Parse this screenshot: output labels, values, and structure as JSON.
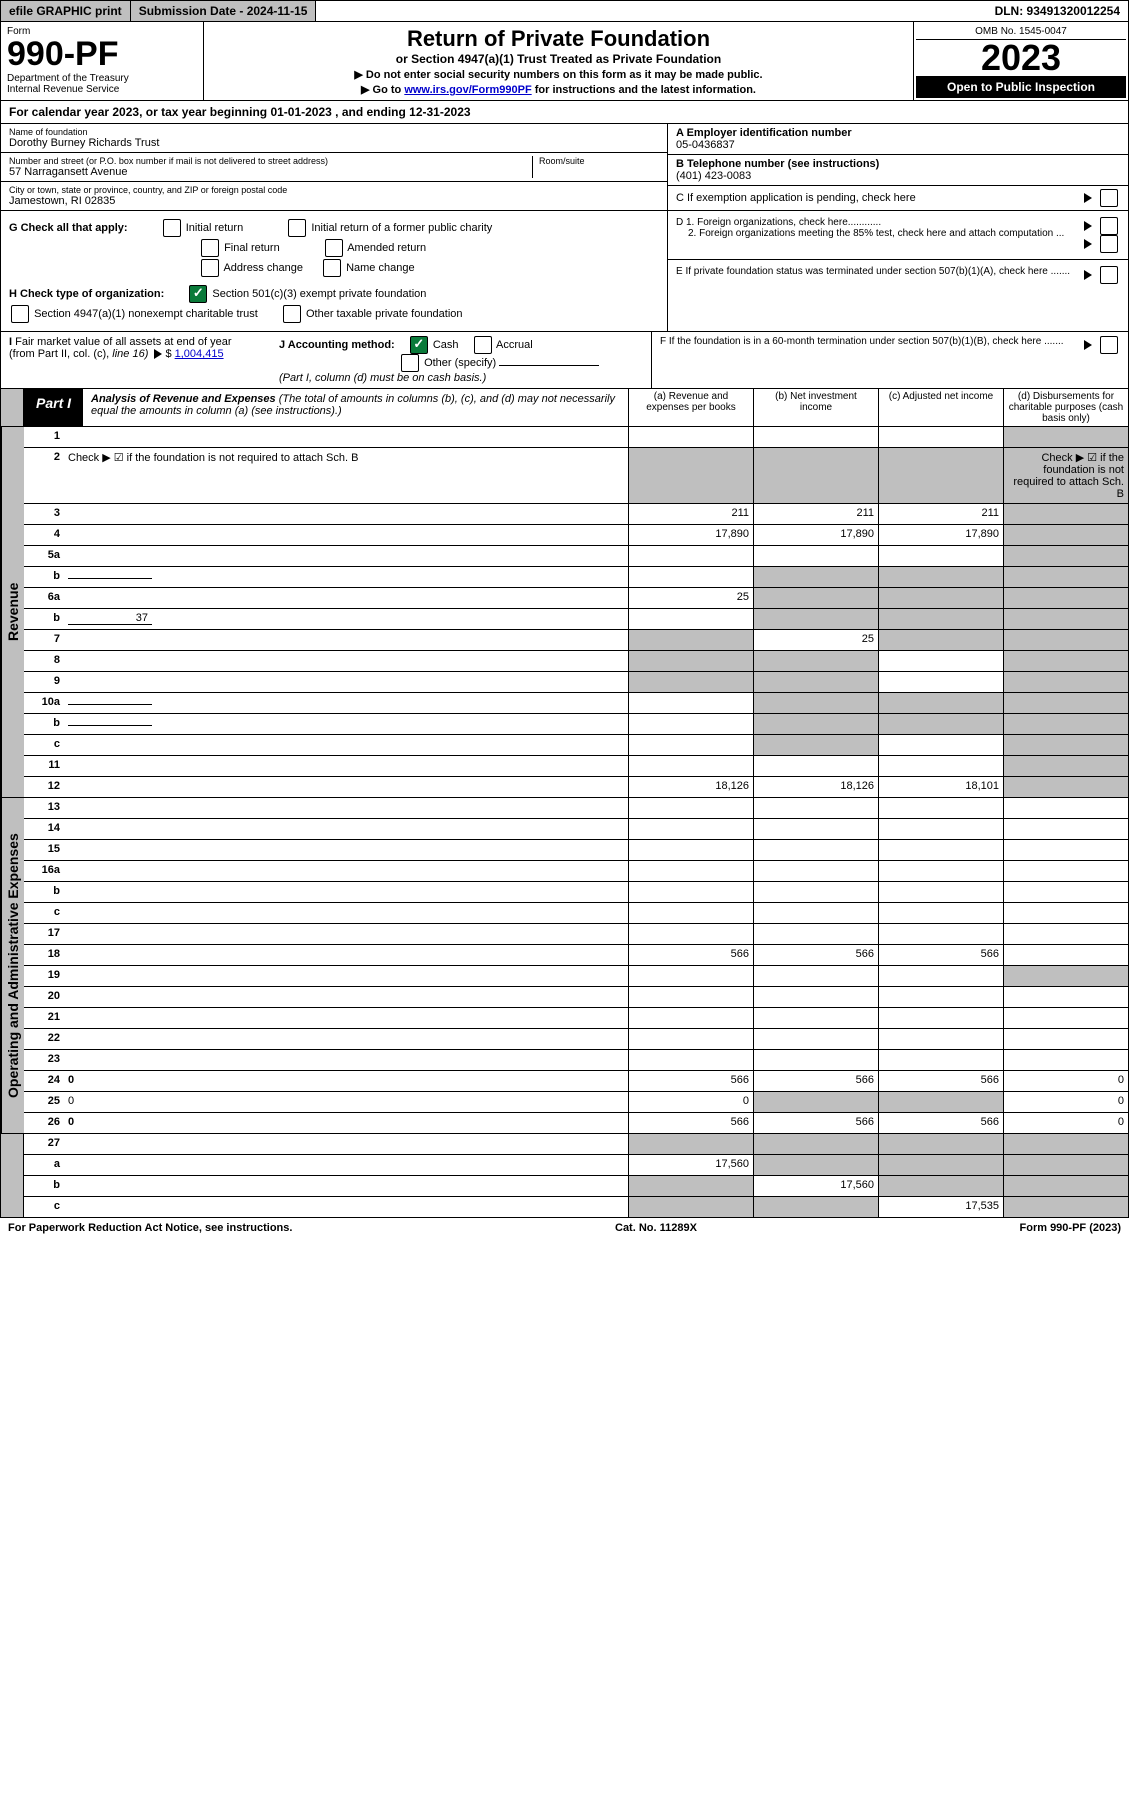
{
  "topbar": {
    "print": "efile GRAPHIC print",
    "submission": "Submission Date - 2024-11-15",
    "dln": "DLN: 93491320012254"
  },
  "header": {
    "form_label": "Form",
    "form_no": "990-PF",
    "dept": "Department of the Treasury\nInternal Revenue Service",
    "title": "Return of Private Foundation",
    "subtitle": "or Section 4947(a)(1) Trust Treated as Private Foundation",
    "instr1": "▶ Do not enter social security numbers on this form as it may be made public.",
    "instr2_prefix": "▶ Go to ",
    "instr2_link": "www.irs.gov/Form990PF",
    "instr2_suffix": " for instructions and the latest information.",
    "omb": "OMB No. 1545-0047",
    "year": "2023",
    "open": "Open to Public Inspection"
  },
  "cal_year": "For calendar year 2023, or tax year beginning 01-01-2023                               , and ending 12-31-2023",
  "info": {
    "name_label": "Name of foundation",
    "name": "Dorothy Burney Richards Trust",
    "addr_label": "Number and street (or P.O. box number if mail is not delivered to street address)",
    "addr": "57 Narragansett Avenue",
    "room_label": "Room/suite",
    "city_label": "City or town, state or province, country, and ZIP or foreign postal code",
    "city": "Jamestown, RI  02835",
    "ein_label": "A Employer identification number",
    "ein": "05-0436837",
    "phone_label": "B Telephone number (see instructions)",
    "phone": "(401) 423-0083",
    "c_label": "C If exemption application is pending, check here"
  },
  "g": {
    "label": "G Check all that apply:",
    "opts": [
      "Initial return",
      "Final return",
      "Address change",
      "Initial return of a former public charity",
      "Amended return",
      "Name change"
    ]
  },
  "h": {
    "label": "H Check type of organization:",
    "opt1": "Section 501(c)(3) exempt private foundation",
    "opt2": "Section 4947(a)(1) nonexempt charitable trust",
    "opt3": "Other taxable private foundation"
  },
  "i": {
    "label": "I Fair market value of all assets at end of year (from Part II, col. (c), line 16) ▶ $",
    "value": "1,004,415"
  },
  "j": {
    "label": "J Accounting method:",
    "cash": "Cash",
    "accrual": "Accrual",
    "other": "Other (specify)",
    "note": "(Part I, column (d) must be on cash basis.)"
  },
  "d": {
    "d1": "D 1. Foreign organizations, check here............",
    "d2": "2. Foreign organizations meeting the 85% test, check here and attach computation ..."
  },
  "e": "E  If private foundation status was terminated under section 507(b)(1)(A), check here .......",
  "f": "F  If the foundation is in a 60-month termination under section 507(b)(1)(B), check here .......",
  "part1": {
    "tag": "Part I",
    "title": "Analysis of Revenue and Expenses",
    "note": " (The total of amounts in columns (b), (c), and (d) may not necessarily equal the amounts in column (a) (see instructions).)",
    "cols": [
      "(a)  Revenue and expenses per books",
      "(b)  Net investment income",
      "(c)  Adjusted net income",
      "(d)  Disbursements for charitable purposes (cash basis only)"
    ]
  },
  "side_labels": {
    "revenue": "Revenue",
    "expenses": "Operating and Administrative Expenses"
  },
  "lines": [
    {
      "n": "1",
      "d": "",
      "a": "",
      "b": "",
      "c": "",
      "greyD": true
    },
    {
      "n": "2",
      "d": "Check ▶ ☑ if the foundation is not required to attach Sch. B",
      "noData": true,
      "greyAll": true
    },
    {
      "n": "3",
      "d": "",
      "a": "211",
      "b": "211",
      "c": "211",
      "greyD": true
    },
    {
      "n": "4",
      "d": "",
      "a": "17,890",
      "b": "17,890",
      "c": "17,890",
      "greyD": true
    },
    {
      "n": "5a",
      "d": "",
      "a": "",
      "b": "",
      "c": "",
      "greyD": true
    },
    {
      "n": "b",
      "d": "",
      "a": "",
      "b": "",
      "c": "",
      "greyBCD": true,
      "inline": true
    },
    {
      "n": "6a",
      "d": "",
      "a": "25",
      "b": "",
      "c": "",
      "greyBCD": true
    },
    {
      "n": "b",
      "d": "",
      "a": "",
      "b": "",
      "c": "",
      "greyBCD": true,
      "inline": true,
      "inlineVal": "37"
    },
    {
      "n": "7",
      "d": "",
      "a": "",
      "b": "25",
      "c": "",
      "greyA": true,
      "greyCD": true
    },
    {
      "n": "8",
      "d": "",
      "a": "",
      "b": "",
      "c": "",
      "greyABD": true
    },
    {
      "n": "9",
      "d": "",
      "a": "",
      "b": "",
      "c": "",
      "greyABD": true
    },
    {
      "n": "10a",
      "d": "",
      "a": "",
      "b": "",
      "c": "",
      "greyBCD": true,
      "inline": true
    },
    {
      "n": "b",
      "d": "",
      "a": "",
      "b": "",
      "c": "",
      "greyBCD": true,
      "inline": true
    },
    {
      "n": "c",
      "d": "",
      "a": "",
      "b": "",
      "c": "",
      "greyBD": true
    },
    {
      "n": "11",
      "d": "",
      "a": "",
      "b": "",
      "c": "",
      "greyD": true
    },
    {
      "n": "12",
      "d": "",
      "a": "18,126",
      "b": "18,126",
      "c": "18,101",
      "bold": true,
      "greyD": true
    }
  ],
  "exp_lines": [
    {
      "n": "13",
      "d": "",
      "a": "",
      "b": "",
      "c": ""
    },
    {
      "n": "14",
      "d": "",
      "a": "",
      "b": "",
      "c": ""
    },
    {
      "n": "15",
      "d": "",
      "a": "",
      "b": "",
      "c": ""
    },
    {
      "n": "16a",
      "d": "",
      "a": "",
      "b": "",
      "c": ""
    },
    {
      "n": "b",
      "d": "",
      "a": "",
      "b": "",
      "c": ""
    },
    {
      "n": "c",
      "d": "",
      "a": "",
      "b": "",
      "c": ""
    },
    {
      "n": "17",
      "d": "",
      "a": "",
      "b": "",
      "c": ""
    },
    {
      "n": "18",
      "d": "",
      "a": "566",
      "b": "566",
      "c": "566"
    },
    {
      "n": "19",
      "d": "",
      "a": "",
      "b": "",
      "c": "",
      "greyD": true
    },
    {
      "n": "20",
      "d": "",
      "a": "",
      "b": "",
      "c": ""
    },
    {
      "n": "21",
      "d": "",
      "a": "",
      "b": "",
      "c": ""
    },
    {
      "n": "22",
      "d": "",
      "a": "",
      "b": "",
      "c": ""
    },
    {
      "n": "23",
      "d": "",
      "a": "",
      "b": "",
      "c": ""
    },
    {
      "n": "24",
      "d": "0",
      "a": "566",
      "b": "566",
      "c": "566",
      "bold": true
    },
    {
      "n": "25",
      "d": "0",
      "a": "0",
      "b": "",
      "c": "",
      "greyBC": true
    },
    {
      "n": "26",
      "d": "0",
      "a": "566",
      "b": "566",
      "c": "566",
      "bold": true
    }
  ],
  "bottom_lines": [
    {
      "n": "27",
      "d": "",
      "a": "",
      "b": "",
      "c": "",
      "greyAll": true,
      "noBottom": true
    },
    {
      "n": "a",
      "d": "",
      "a": "17,560",
      "b": "",
      "c": "",
      "bold": true,
      "greyBCD": true
    },
    {
      "n": "b",
      "d": "",
      "a": "",
      "b": "17,560",
      "c": "",
      "bold": true,
      "greyACD": true
    },
    {
      "n": "c",
      "d": "",
      "a": "",
      "b": "",
      "c": "17,535",
      "bold": true,
      "greyABD": true
    }
  ],
  "footer": {
    "left": "For Paperwork Reduction Act Notice, see instructions.",
    "center": "Cat. No. 11289X",
    "right": "Form 990-PF (2023)"
  }
}
